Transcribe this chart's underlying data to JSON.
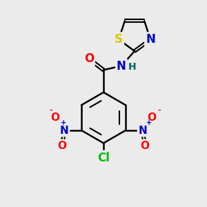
{
  "bg_color": "#ebebeb",
  "bond_color": "#000000",
  "bond_width": 1.8,
  "atom_colors": {
    "O": "#ff0000",
    "N": "#0000cc",
    "S": "#cccc00",
    "Cl": "#00bb00",
    "H": "#006666",
    "C": "#000000"
  },
  "font_size_atoms": 11,
  "figsize": [
    3.0,
    3.0
  ],
  "dpi": 100
}
